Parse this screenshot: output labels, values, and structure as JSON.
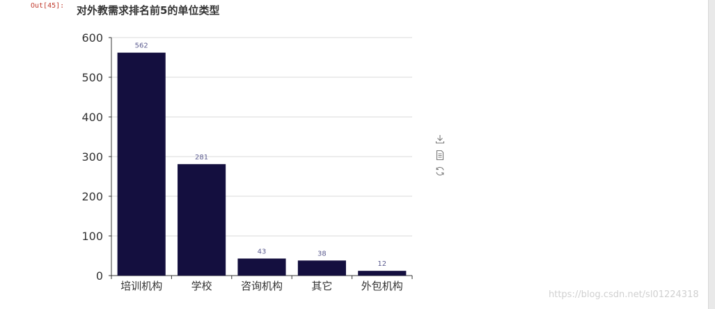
{
  "cell": {
    "out_label": "Out[45]:"
  },
  "chart_data": {
    "type": "bar",
    "title": "对外教需求排名前5的单位类型",
    "categories": [
      "培训机构",
      "学校",
      "咨询机构",
      "其它",
      "外包机构"
    ],
    "values": [
      562,
      281,
      43,
      38,
      12
    ],
    "yticks": [
      "0",
      "100",
      "200",
      "300",
      "400",
      "500",
      "600"
    ],
    "ylim": [
      0,
      600
    ],
    "grid": true,
    "bar_color": "#140f3f",
    "label_color": "#5b5b8f",
    "xlabel": "",
    "ylabel": ""
  },
  "toolbox": {
    "items": [
      {
        "icon": "download-icon"
      },
      {
        "icon": "data-view-icon"
      },
      {
        "icon": "restore-icon"
      }
    ]
  },
  "watermark": "https://blog.csdn.net/sl01224318"
}
